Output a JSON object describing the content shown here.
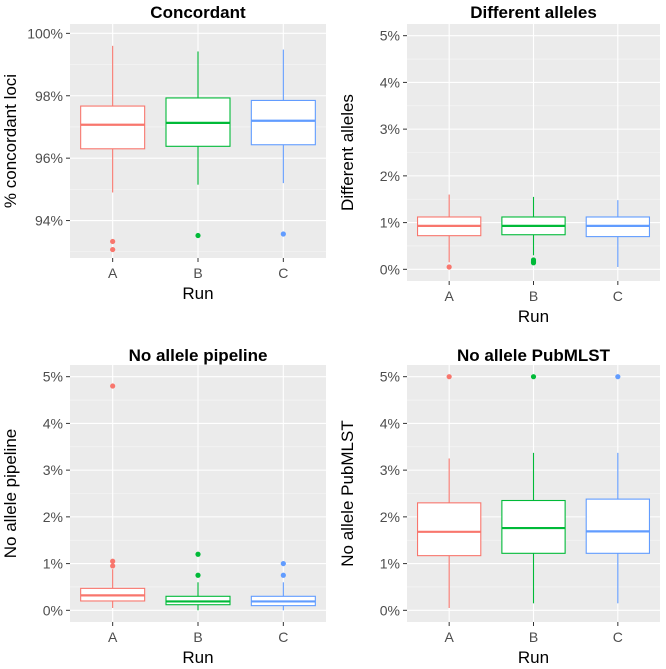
{
  "colors": {
    "panel_bg": "#ebebeb",
    "grid_major": "#ffffff",
    "tick": "#333333",
    "runs": {
      "A": "#f8766d",
      "B": "#00ba38",
      "C": "#619cff"
    }
  },
  "chart_data": [
    {
      "type": "boxplot",
      "title": "Concordant",
      "xlabel": "Run",
      "ylabel": "% concordant loci",
      "categories": [
        "A",
        "B",
        "C"
      ],
      "ylim": [
        92.8,
        100.3
      ],
      "yticks": [
        94,
        96,
        98,
        100
      ],
      "ytick_labels": [
        "94%",
        "96%",
        "98%",
        "100%"
      ],
      "boxes": [
        {
          "run": "A",
          "whisker_low": 94.9,
          "q1": 96.3,
          "median": 97.07,
          "q3": 97.67,
          "whisker_high": 99.6,
          "outliers": [
            93.33,
            93.07
          ]
        },
        {
          "run": "B",
          "whisker_low": 95.15,
          "q1": 96.38,
          "median": 97.13,
          "q3": 97.93,
          "whisker_high": 99.42,
          "outliers": [
            93.52
          ]
        },
        {
          "run": "C",
          "whisker_low": 95.2,
          "q1": 96.43,
          "median": 97.2,
          "q3": 97.85,
          "whisker_high": 99.48,
          "outliers": [
            93.57
          ]
        }
      ]
    },
    {
      "type": "boxplot",
      "title": "Different alleles",
      "xlabel": "Run",
      "ylabel": "Different alleles",
      "categories": [
        "A",
        "B",
        "C"
      ],
      "ylim": [
        -0.25,
        5.25
      ],
      "yticks": [
        0,
        1,
        2,
        3,
        4,
        5
      ],
      "ytick_labels": [
        "0%",
        "1%",
        "2%",
        "3%",
        "4%",
        "5%"
      ],
      "boxes": [
        {
          "run": "A",
          "whisker_low": 0.15,
          "q1": 0.72,
          "median": 0.93,
          "q3": 1.12,
          "whisker_high": 1.6,
          "outliers": [
            0.05
          ]
        },
        {
          "run": "B",
          "whisker_low": 0.3,
          "q1": 0.74,
          "median": 0.93,
          "q3": 1.12,
          "whisker_high": 1.55,
          "outliers": [
            0.2,
            0.17,
            0.14
          ]
        },
        {
          "run": "C",
          "whisker_low": 0.05,
          "q1": 0.7,
          "median": 0.93,
          "q3": 1.12,
          "whisker_high": 1.48,
          "outliers": []
        }
      ]
    },
    {
      "type": "boxplot",
      "title": "No allele pipeline",
      "xlabel": "Run",
      "ylabel": "No allele pipeline",
      "categories": [
        "A",
        "B",
        "C"
      ],
      "ylim": [
        -0.25,
        5.25
      ],
      "yticks": [
        0,
        1,
        2,
        3,
        4,
        5
      ],
      "ytick_labels": [
        "0%",
        "1%",
        "2%",
        "3%",
        "4%",
        "5%"
      ],
      "boxes": [
        {
          "run": "A",
          "whisker_low": 0.05,
          "q1": 0.2,
          "median": 0.32,
          "q3": 0.47,
          "whisker_high": 0.88,
          "outliers": [
            4.8,
            1.05,
            0.95
          ]
        },
        {
          "run": "B",
          "whisker_low": 0.0,
          "q1": 0.12,
          "median": 0.19,
          "q3": 0.3,
          "whisker_high": 0.6,
          "outliers": [
            1.2,
            0.75
          ]
        },
        {
          "run": "C",
          "whisker_low": 0.0,
          "q1": 0.1,
          "median": 0.19,
          "q3": 0.3,
          "whisker_high": 0.6,
          "outliers": [
            1.0,
            0.75
          ]
        }
      ]
    },
    {
      "type": "boxplot",
      "title": "No allele PubMLST",
      "xlabel": "Run",
      "ylabel": "No allele PubMLST",
      "categories": [
        "A",
        "B",
        "C"
      ],
      "ylim": [
        -0.25,
        5.25
      ],
      "yticks": [
        0,
        1,
        2,
        3,
        4,
        5
      ],
      "ytick_labels": [
        "0%",
        "1%",
        "2%",
        "3%",
        "4%",
        "5%"
      ],
      "boxes": [
        {
          "run": "A",
          "whisker_low": 0.05,
          "q1": 1.17,
          "median": 1.68,
          "q3": 2.3,
          "whisker_high": 3.25,
          "outliers": [
            5.0
          ]
        },
        {
          "run": "B",
          "whisker_low": 0.15,
          "q1": 1.22,
          "median": 1.76,
          "q3": 2.35,
          "whisker_high": 3.37,
          "outliers": [
            5.0
          ]
        },
        {
          "run": "C",
          "whisker_low": 0.15,
          "q1": 1.22,
          "median": 1.69,
          "q3": 2.38,
          "whisker_high": 3.37,
          "outliers": [
            5.0
          ]
        }
      ]
    }
  ]
}
